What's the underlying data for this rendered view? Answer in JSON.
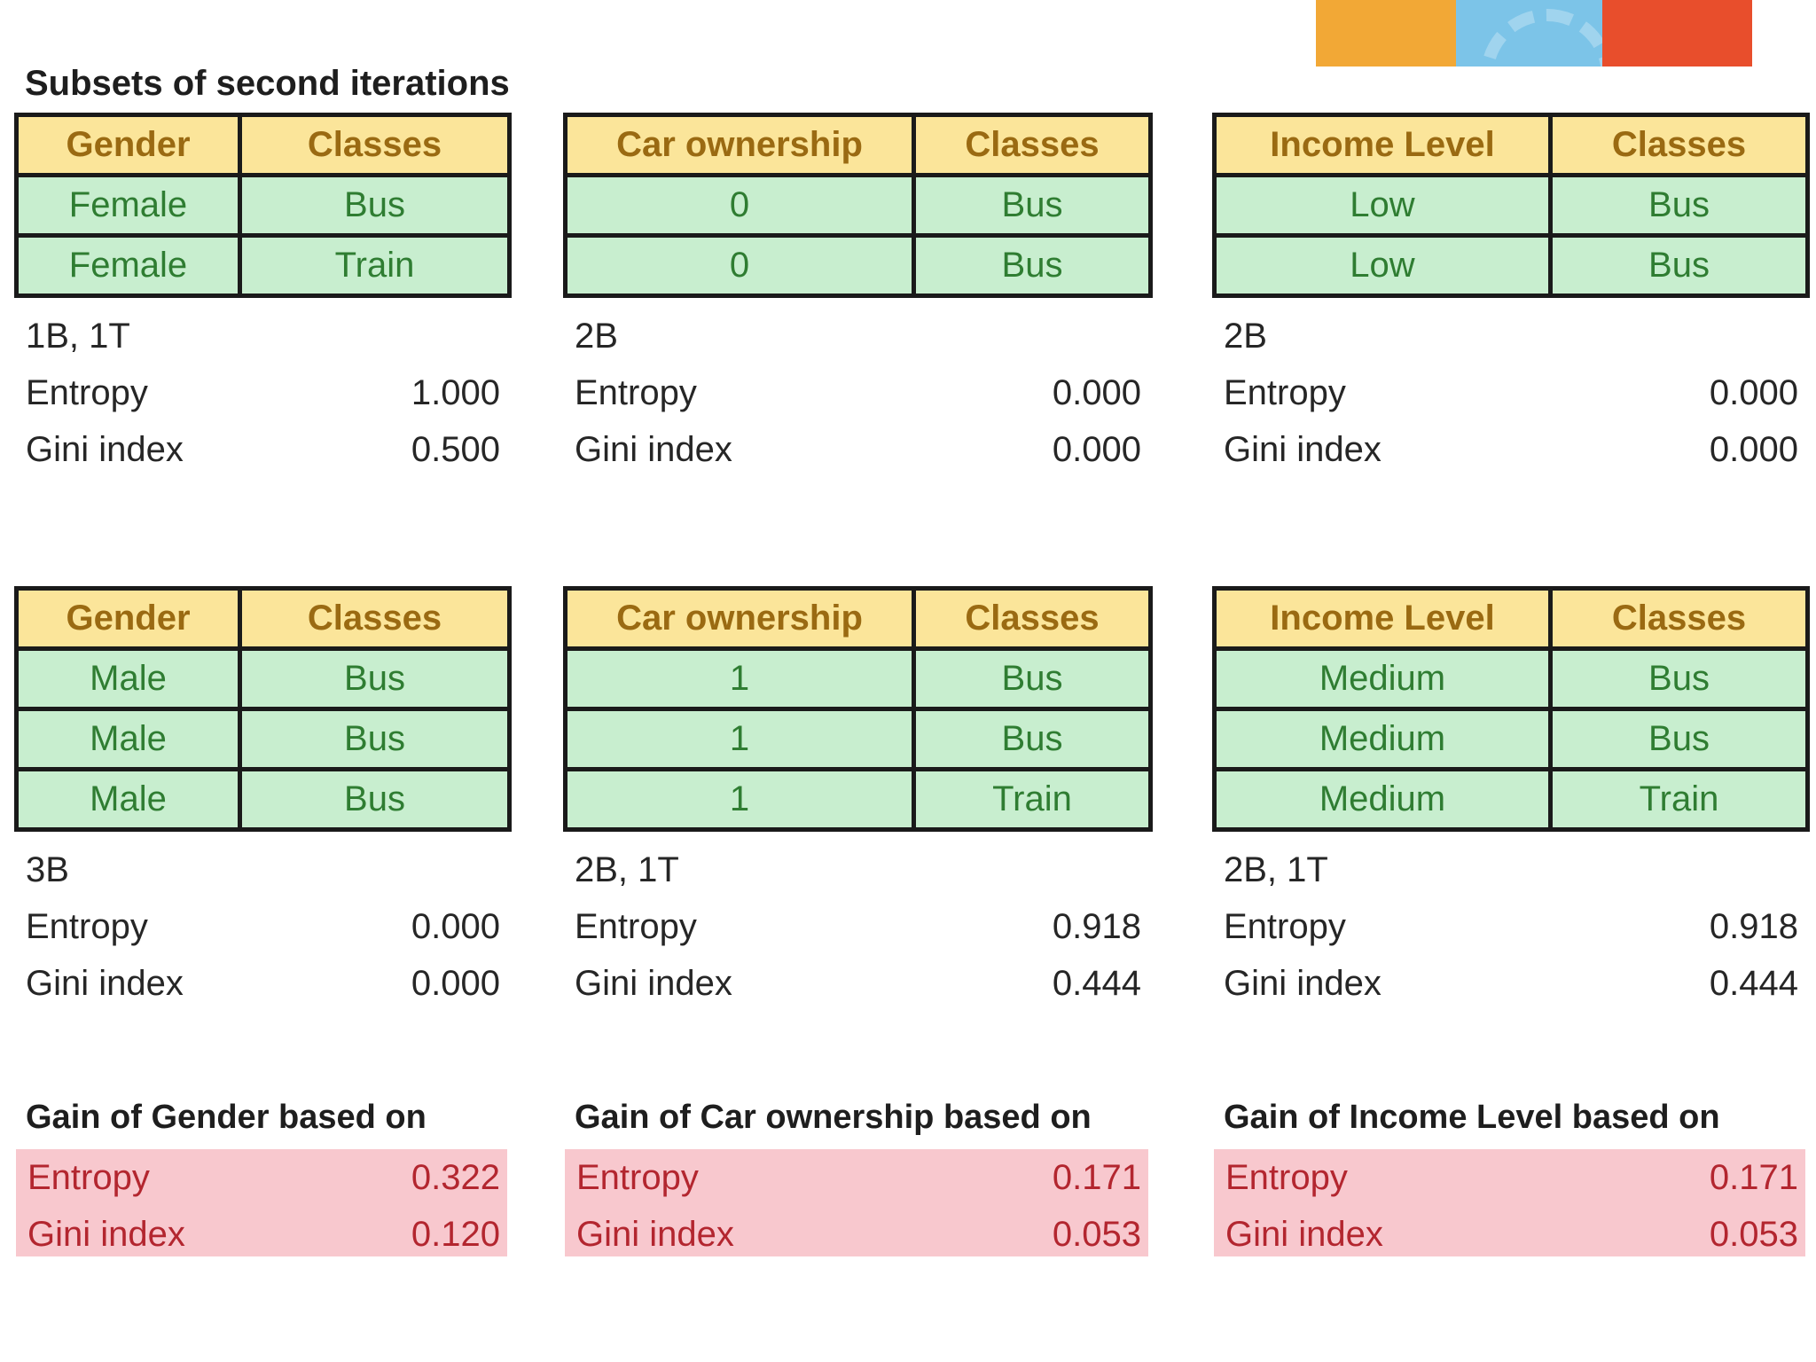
{
  "title": "Subsets of second iterations",
  "top_row": [
    {
      "headers": [
        "Gender",
        "Classes"
      ],
      "rows": [
        [
          "Female",
          "Bus"
        ],
        [
          "Female",
          "Train"
        ]
      ],
      "count": "1B, 1T",
      "entropy_label": "Entropy",
      "entropy": "1.000",
      "gini_label": "Gini index",
      "gini": "0.500"
    },
    {
      "headers": [
        "Car ownership",
        "Classes"
      ],
      "rows": [
        [
          "0",
          "Bus"
        ],
        [
          "0",
          "Bus"
        ]
      ],
      "count": "2B",
      "entropy_label": "Entropy",
      "entropy": "0.000",
      "gini_label": "Gini index",
      "gini": "0.000"
    },
    {
      "headers": [
        "Income Level",
        "Classes"
      ],
      "rows": [
        [
          "Low",
          "Bus"
        ],
        [
          "Low",
          "Bus"
        ]
      ],
      "count": "2B",
      "entropy_label": "Entropy",
      "entropy": "0.000",
      "gini_label": "Gini index",
      "gini": "0.000"
    }
  ],
  "bottom_row": [
    {
      "headers": [
        "Gender",
        "Classes"
      ],
      "rows": [
        [
          "Male",
          "Bus"
        ],
        [
          "Male",
          "Bus"
        ],
        [
          "Male",
          "Bus"
        ]
      ],
      "count": "3B",
      "entropy_label": "Entropy",
      "entropy": "0.000",
      "gini_label": "Gini index",
      "gini": "0.000"
    },
    {
      "headers": [
        "Car ownership",
        "Classes"
      ],
      "rows": [
        [
          "1",
          "Bus"
        ],
        [
          "1",
          "Bus"
        ],
        [
          "1",
          "Train"
        ]
      ],
      "count": "2B, 1T",
      "entropy_label": "Entropy",
      "entropy": "0.918",
      "gini_label": "Gini index",
      "gini": "0.444"
    },
    {
      "headers": [
        "Income Level",
        "Classes"
      ],
      "rows": [
        [
          "Medium",
          "Bus"
        ],
        [
          "Medium",
          "Bus"
        ],
        [
          "Medium",
          "Train"
        ]
      ],
      "count": "2B, 1T",
      "entropy_label": "Entropy",
      "entropy": "0.918",
      "gini_label": "Gini index",
      "gini": "0.444"
    }
  ],
  "gains": [
    {
      "title": "Gain of Gender based on",
      "entropy_label": "Entropy",
      "entropy": "0.322",
      "gini_label": "Gini index",
      "gini": "0.120"
    },
    {
      "title": "Gain of Car ownership based on",
      "entropy_label": "Entropy",
      "entropy": "0.171",
      "gini_label": "Gini index",
      "gini": "0.053"
    },
    {
      "title": "Gain of Income Level based on",
      "entropy_label": "Entropy",
      "entropy": "0.171",
      "gini_label": "Gini index",
      "gini": "0.053"
    }
  ],
  "colors": {
    "header_fill": "#fbe59a",
    "header_text": "#9a6a12",
    "cell_fill": "#c8eecf",
    "cell_text": "#2f7d32",
    "gain_fill": "#f8c8ce",
    "gain_text": "#b3262f"
  }
}
